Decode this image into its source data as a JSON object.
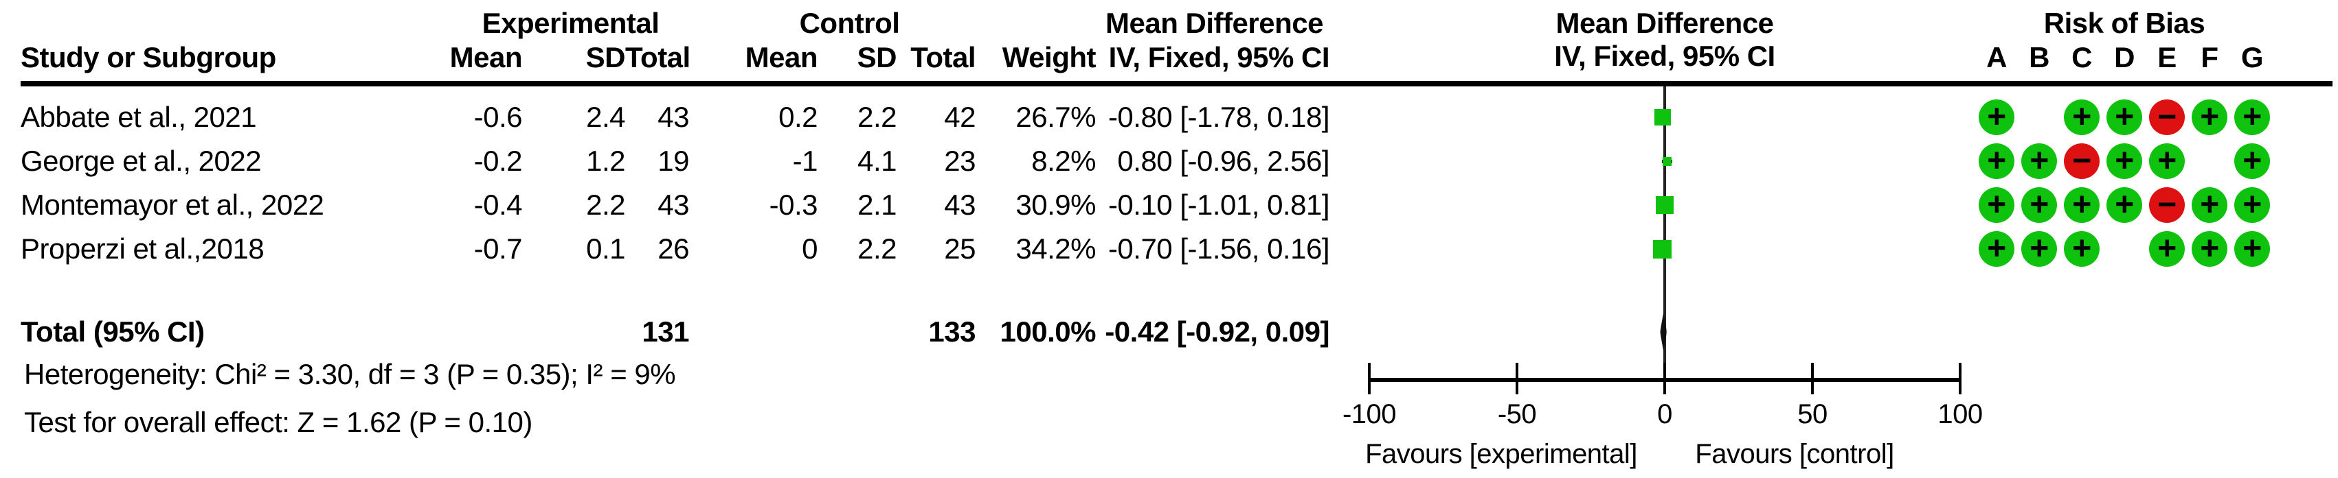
{
  "colors": {
    "green": "#0ec20e",
    "red": "#dd1111",
    "ink": "#000000",
    "background": "#ffffff"
  },
  "header": {
    "experimental": "Experimental",
    "control": "Control",
    "mean_difference_text": "Mean Difference",
    "mean_difference_plot": "Mean Difference",
    "risk_of_bias": "Risk of Bias",
    "study_col": "Study or Subgroup",
    "mean": "Mean",
    "sd": "SD",
    "total": "Total",
    "weight": "Weight",
    "iv_fixed_text": "IV, Fixed, 95% CI",
    "iv_fixed_plot": "IV, Fixed, 95% CI",
    "rob_letters": [
      "A",
      "B",
      "C",
      "D",
      "E",
      "F",
      "G"
    ]
  },
  "studies": [
    {
      "name": "Abbate et al., 2021",
      "mean_e": "-0.6",
      "sd_e": "2.4",
      "total_e": "43",
      "mean_c": "0.2",
      "sd_c": "2.2",
      "total_c": "42",
      "weight": "26.7%",
      "ci_text": "-0.80 [-1.78, 0.18]",
      "rob": [
        "+",
        "",
        "+",
        "+",
        "-",
        "+",
        "+"
      ]
    },
    {
      "name": "George et al., 2022",
      "mean_e": "-0.2",
      "sd_e": "1.2",
      "total_e": "19",
      "mean_c": "-1",
      "sd_c": "4.1",
      "total_c": "23",
      "weight": "8.2%",
      "ci_text": "0.80 [-0.96, 2.56]",
      "rob": [
        "+",
        "+",
        "-",
        "+",
        "+",
        "",
        "+"
      ]
    },
    {
      "name": "Montemayor et al., 2022",
      "mean_e": "-0.4",
      "sd_e": "2.2",
      "total_e": "43",
      "mean_c": "-0.3",
      "sd_c": "2.1",
      "total_c": "43",
      "weight": "30.9%",
      "ci_text": "-0.10 [-1.01, 0.81]",
      "rob": [
        "+",
        "+",
        "+",
        "+",
        "-",
        "+",
        "+"
      ]
    },
    {
      "name": "Properzi et al.,2018",
      "mean_e": "-0.7",
      "sd_e": "0.1",
      "total_e": "26",
      "mean_c": "0",
      "sd_c": "2.2",
      "total_c": "25",
      "weight": "34.2%",
      "ci_text": "-0.70 [-1.56, 0.16]",
      "rob": [
        "+",
        "+",
        "+",
        "",
        "+",
        "+",
        "+"
      ]
    }
  ],
  "total": {
    "label": "Total (95% CI)",
    "total_e": "131",
    "total_c": "133",
    "weight": "100.0%",
    "ci_text": "-0.42 [-0.92, 0.09]"
  },
  "footer": {
    "heterogeneity": "Heterogeneity: Chi² = 3.30, df = 3 (P = 0.35); I² = 9%",
    "overall_effect": "Test for overall effect: Z = 1.62 (P = 0.10)"
  },
  "axis": {
    "tick_labels": [
      "-100",
      "-50",
      "0",
      "50",
      "100"
    ],
    "favours_left": "Favours [experimental]",
    "favours_right": "Favours [control]"
  },
  "chart_data": {
    "type": "scatter",
    "subtype": "forest-plot",
    "effect_measure": "Mean Difference, IV, Fixed, 95% CI",
    "xlim": [
      -100,
      100
    ],
    "xticks": [
      -100,
      -50,
      0,
      50,
      100
    ],
    "xlabel_left": "Favours [experimental]",
    "xlabel_right": "Favours [control]",
    "studies": [
      {
        "name": "Abbate et al., 2021",
        "md": -0.8,
        "ci_low": -1.78,
        "ci_high": 0.18,
        "weight_pct": 26.7
      },
      {
        "name": "George et al., 2022",
        "md": 0.8,
        "ci_low": -0.96,
        "ci_high": 2.56,
        "weight_pct": 8.2
      },
      {
        "name": "Montemayor et al., 2022",
        "md": -0.1,
        "ci_low": -1.01,
        "ci_high": 0.81,
        "weight_pct": 30.9
      },
      {
        "name": "Properzi et al.,2018",
        "md": -0.7,
        "ci_low": -1.56,
        "ci_high": 0.16,
        "weight_pct": 34.2
      }
    ],
    "total": {
      "md": -0.42,
      "ci_low": -0.92,
      "ci_high": 0.09,
      "n_experimental": 131,
      "n_control": 133,
      "weight_pct": 100.0
    },
    "heterogeneity": "Chi² = 3.30, df = 3 (P = 0.35); I² = 9%",
    "overall_effect": "Z = 1.62 (P = 0.10)"
  }
}
